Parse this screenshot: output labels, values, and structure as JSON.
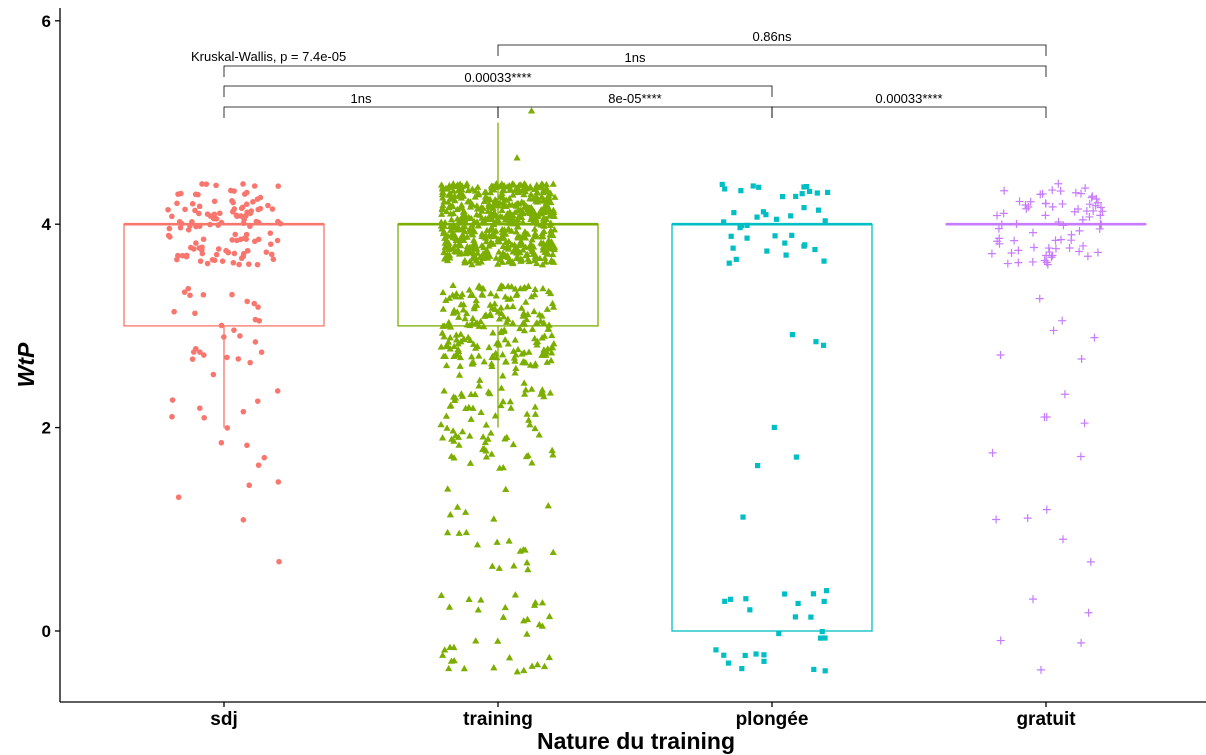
{
  "chart_data": {
    "type": "boxplot-jitter",
    "xlabel": "Nature du training",
    "ylabel": "WtP",
    "ylim": [
      -0.65,
      6.05
    ],
    "yticks": [
      0,
      2,
      4,
      6
    ],
    "categories": [
      "sdj",
      "training",
      "plongée",
      "gratuit"
    ],
    "colors": {
      "sdj": "#F8766D",
      "training": "#7CAE00",
      "plongée": "#00BFC4",
      "gratuit": "#C77CFF"
    },
    "point_shapes": {
      "sdj": "circle",
      "training": "triangle",
      "plongée": "square",
      "gratuit": "plus"
    },
    "boxes": [
      {
        "category": "sdj",
        "min": 2,
        "q1": 3,
        "median": 4,
        "q3": 4,
        "max": 4
      },
      {
        "category": "training",
        "min": 2,
        "q1": 3,
        "median": 4,
        "q3": 4,
        "max": 5
      },
      {
        "category": "plongée",
        "min": 0,
        "q1": 0,
        "median": 4,
        "q3": 4,
        "max": 4
      },
      {
        "category": "gratuit",
        "min": 4,
        "q1": 4,
        "median": 4,
        "q3": 4,
        "max": 4
      }
    ],
    "points": {
      "sdj": [
        {
          "value": 4,
          "n": 120
        },
        {
          "value": 3,
          "n": 25
        },
        {
          "value": 2.5,
          "n": 6
        },
        {
          "value": 2,
          "n": 5
        },
        {
          "value": 1.7,
          "n": 6
        },
        {
          "value": 0.8,
          "n": 2
        }
      ],
      "training": [
        {
          "value": 5,
          "n": 1
        },
        {
          "value": 4.65,
          "n": 1
        },
        {
          "value": 4,
          "n": 600
        },
        {
          "value": 3,
          "n": 200
        },
        {
          "value": 2.5,
          "n": 25
        },
        {
          "value": 2,
          "n": 60
        },
        {
          "value": 1,
          "n": 22
        },
        {
          "value": 0,
          "n": 35
        }
      ],
      "plongée": [
        {
          "value": 4,
          "n": 40
        },
        {
          "value": 3,
          "n": 3
        },
        {
          "value": 2,
          "n": 3
        },
        {
          "value": 1,
          "n": 1
        },
        {
          "value": 0,
          "n": 25
        }
      ],
      "gratuit": [
        {
          "value": 4,
          "n": 75
        },
        {
          "value": 3,
          "n": 6
        },
        {
          "value": 2,
          "n": 6
        },
        {
          "value": 1,
          "n": 5
        },
        {
          "value": 0,
          "n": 5
        }
      ]
    },
    "overall_test": {
      "label": "Kruskal-Wallis, p = 7.4e-05"
    },
    "comparisons": [
      {
        "from": "sdj",
        "to": "training",
        "label": "1ns"
      },
      {
        "from": "training",
        "to": "plongée",
        "label": "8e-05****"
      },
      {
        "from": "plongée",
        "to": "gratuit",
        "label": "0.00033****"
      },
      {
        "from": "sdj",
        "to": "plongée",
        "label": "0.00033****"
      },
      {
        "from": "sdj",
        "to": "gratuit",
        "label": "1ns"
      },
      {
        "from": "training",
        "to": "gratuit",
        "label": "0.86ns"
      }
    ]
  }
}
